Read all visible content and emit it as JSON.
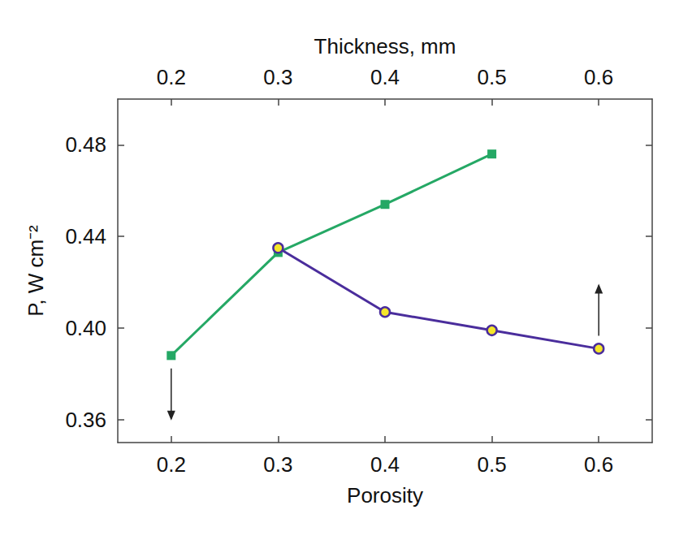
{
  "chart_data": {
    "type": "line",
    "x_label": "Porosity",
    "x2_label": "Thickness, mm",
    "y_label": "P, W cm⁻²",
    "xlim": [
      0.15,
      0.65
    ],
    "xticks": [
      0.2,
      0.3,
      0.4,
      0.5,
      0.6
    ],
    "x2lim": [
      0.15,
      0.65
    ],
    "x2ticks": [
      0.2,
      0.3,
      0.4,
      0.5,
      0.6
    ],
    "ylim": [
      0.35,
      0.5
    ],
    "yticks": [
      0.36,
      0.4,
      0.44,
      0.48
    ],
    "grid": false,
    "series": [
      {
        "axis": "x",
        "color": "#25a865",
        "marker": "square",
        "line_style": "solid",
        "x": [
          0.2,
          0.3,
          0.4,
          0.5
        ],
        "values": [
          0.388,
          0.433,
          0.454,
          0.476
        ]
      },
      {
        "axis": "x2",
        "color": "#4a2d9c",
        "marker": "circle",
        "line_style": "solid",
        "x": [
          0.3,
          0.4,
          0.5,
          0.6
        ],
        "values": [
          0.435,
          0.407,
          0.399,
          0.391
        ]
      }
    ]
  }
}
